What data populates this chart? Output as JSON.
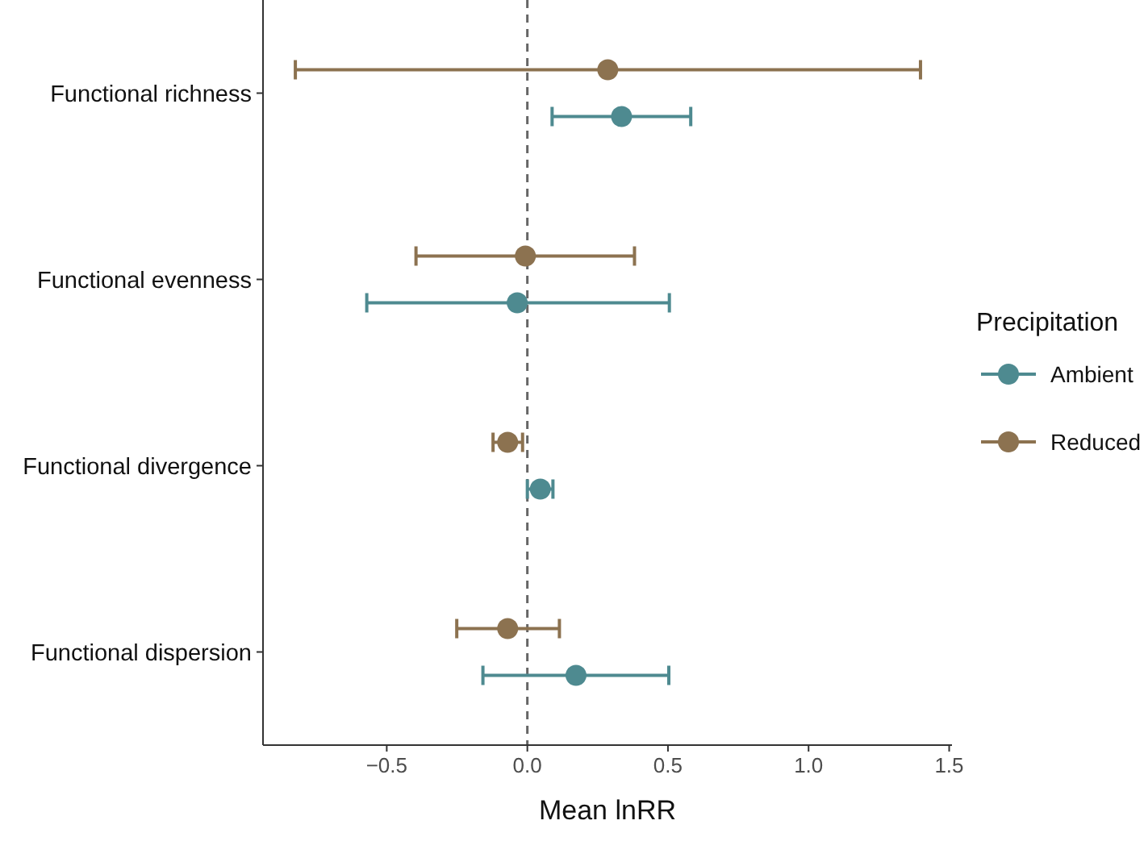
{
  "chart_data": {
    "type": "scatter",
    "orientation": "horizontal",
    "xlabel": "Mean lnRR",
    "legend_title": "Precipitation",
    "legend": "right",
    "grid": false,
    "marker": "circle",
    "categories": [
      "Functional richness",
      "Functional evenness",
      "Functional divergence",
      "Functional dispersion"
    ],
    "xlim": [
      -0.94,
      1.51
    ],
    "xticks": [
      {
        "value": -0.5,
        "label": "−0.5"
      },
      {
        "value": 0,
        "label": "0.0"
      },
      {
        "value": 0.5,
        "label": "0.5"
      },
      {
        "value": 1,
        "label": "1.0"
      },
      {
        "value": 1.5,
        "label": "1.5"
      }
    ],
    "ref_lines": [
      {
        "axis": "x",
        "value": 0,
        "line_style": "dashed",
        "color": "#666666"
      }
    ],
    "series": [
      {
        "name": "Ambient",
        "color": "#4e8a90",
        "values": [
          0.335,
          -0.036,
          0.046,
          0.173
        ],
        "errors": [
          [
            0.088,
            0.581
          ],
          [
            -0.571,
            0.505
          ],
          [
            0.0,
            0.091
          ],
          [
            -0.158,
            0.503
          ]
        ]
      },
      {
        "name": "Reduced",
        "color": "#8c7250",
        "values": [
          0.286,
          -0.007,
          -0.07,
          -0.07
        ],
        "errors": [
          [
            -0.825,
            1.398
          ],
          [
            -0.396,
            0.381
          ],
          [
            -0.122,
            -0.017
          ],
          [
            -0.251,
            0.114
          ]
        ]
      }
    ]
  }
}
